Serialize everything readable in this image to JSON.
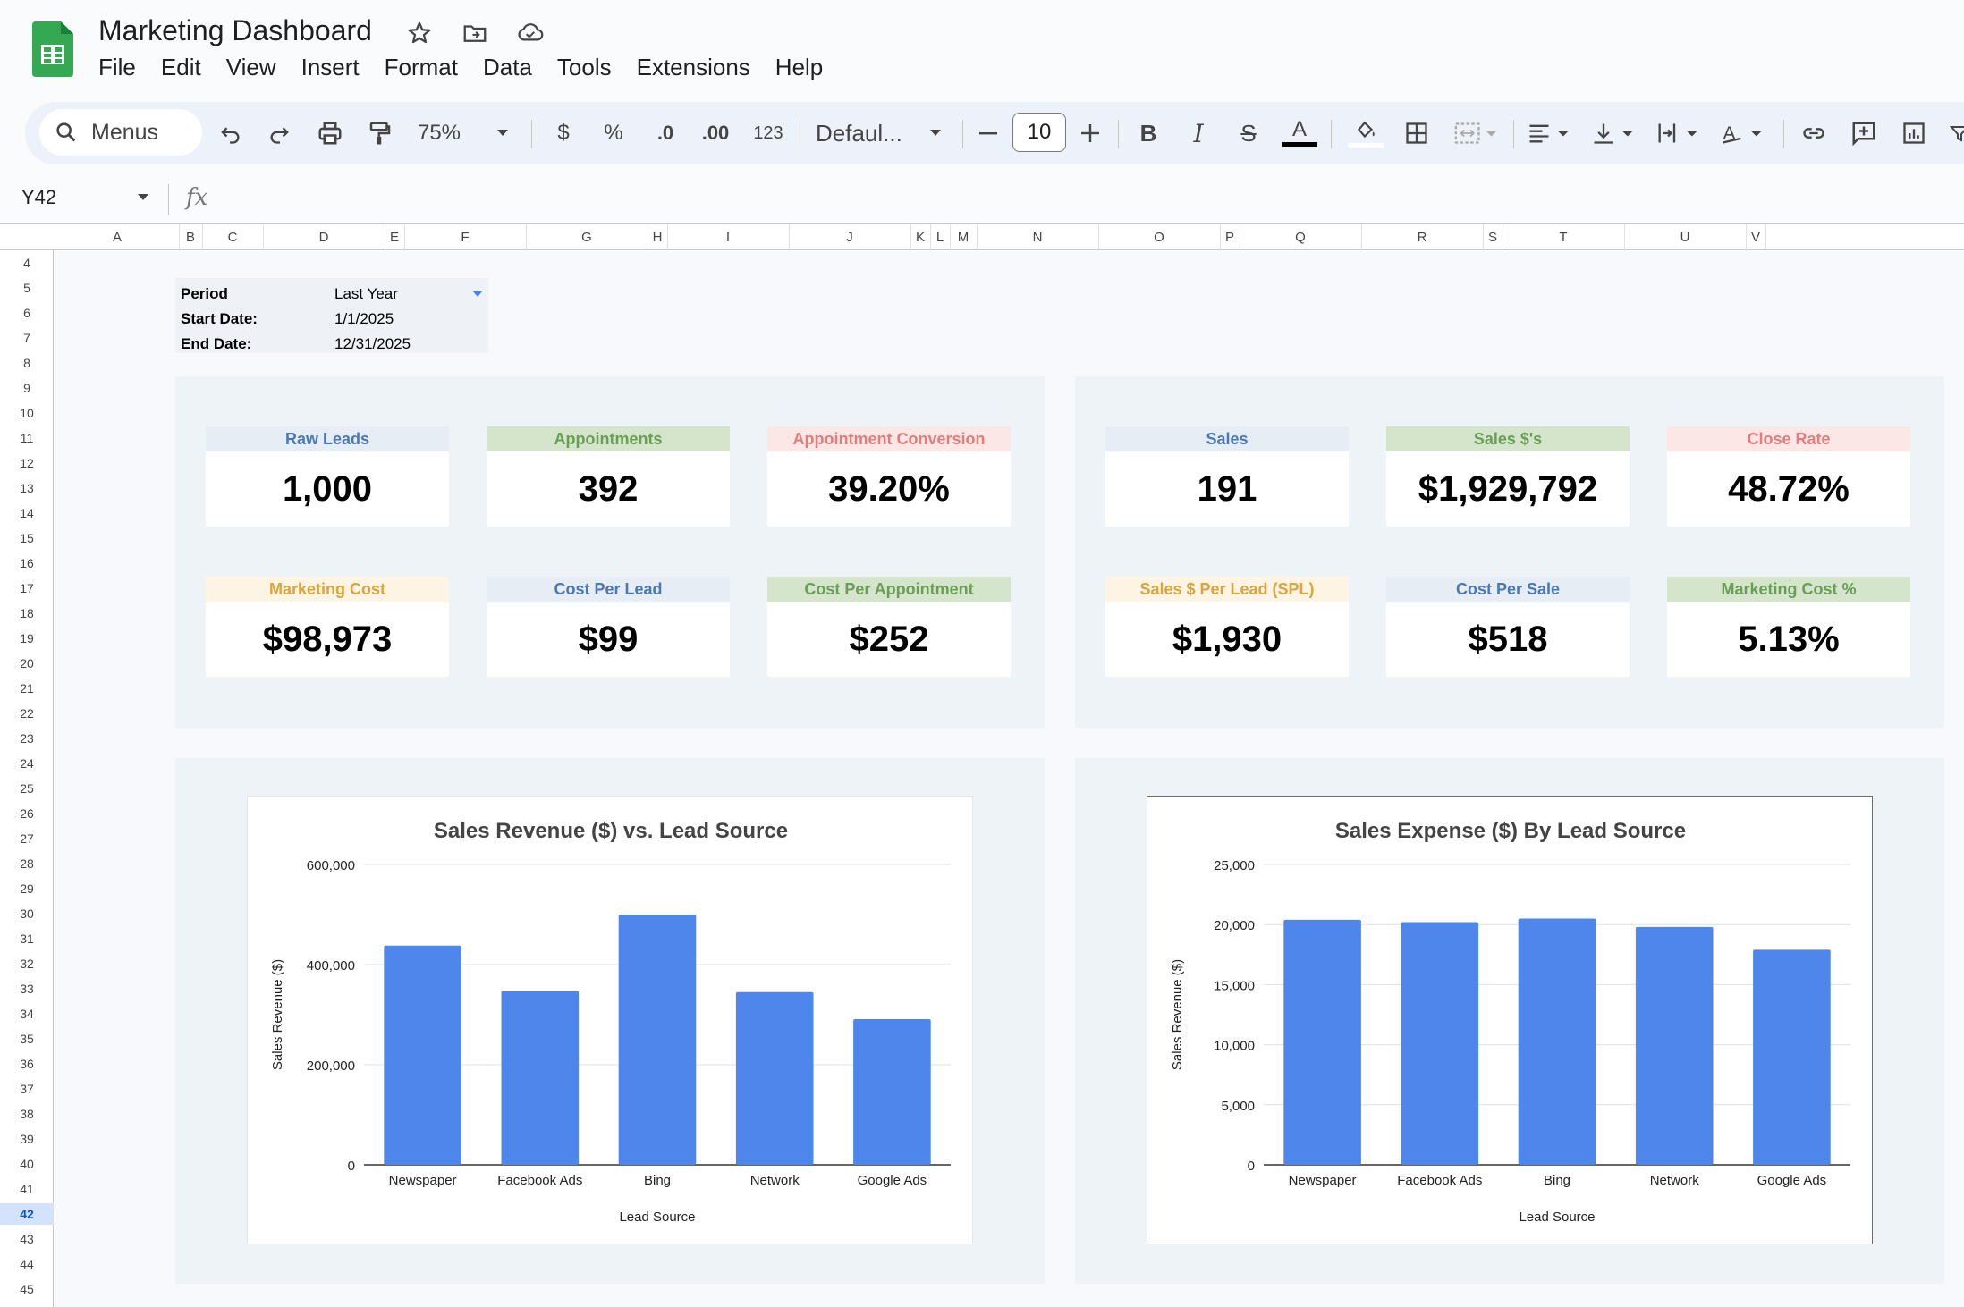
{
  "app": {
    "doc_title": "Marketing Dashboard",
    "menu": [
      "File",
      "Edit",
      "View",
      "Insert",
      "Format",
      "Data",
      "Tools",
      "Extensions",
      "Help"
    ]
  },
  "toolbar": {
    "search_label": "Menus",
    "zoom": "75%",
    "currency": "$",
    "percent": "%",
    "dec_decrease": ".0",
    "dec_increase": ".00",
    "number_format": "123",
    "font": "Defaul...",
    "font_size": "10"
  },
  "formula_bar": {
    "cell_ref": "Y42",
    "fx": "fx"
  },
  "grid": {
    "columns": [
      "A",
      "B",
      "C",
      "D",
      "E",
      "F",
      "G",
      "H",
      "I",
      "J",
      "K",
      "L",
      "M",
      "N",
      "O",
      "P",
      "Q",
      "R",
      "S",
      "T",
      "U",
      "V"
    ],
    "rows": [
      "4",
      "5",
      "6",
      "7",
      "8",
      "9",
      "10",
      "11",
      "12",
      "13",
      "14",
      "15",
      "16",
      "17",
      "18",
      "19",
      "20",
      "21",
      "22",
      "23",
      "24",
      "25",
      "26",
      "27",
      "28",
      "29",
      "30",
      "31",
      "32",
      "33",
      "34",
      "35",
      "36",
      "37",
      "38",
      "39",
      "40",
      "41",
      "42",
      "43",
      "44",
      "45"
    ],
    "selected_row": "42"
  },
  "period": {
    "period_label": "Period",
    "period_value": "Last Year",
    "start_label": "Start Date:",
    "start_value": "1/1/2025",
    "end_label": "End Date:",
    "end_value": "12/31/2025"
  },
  "kpis": {
    "raw_leads": {
      "label": "Raw Leads",
      "value": "1,000"
    },
    "appointments": {
      "label": "Appointments",
      "value": "392"
    },
    "appointment_conversion": {
      "label": "Appointment Conversion",
      "value": "39.20%"
    },
    "marketing_cost": {
      "label": "Marketing Cost",
      "value": "$98,973"
    },
    "cost_per_lead": {
      "label": "Cost Per Lead",
      "value": "$99"
    },
    "cost_per_appointment": {
      "label": "Cost Per Appointment",
      "value": "$252"
    },
    "sales": {
      "label": "Sales",
      "value": "191"
    },
    "sales_dollars": {
      "label": "Sales $'s",
      "value": "$1,929,792"
    },
    "close_rate": {
      "label": "Close Rate",
      "value": "48.72%"
    },
    "spl": {
      "label": "Sales $ Per Lead (SPL)",
      "value": "$1,930"
    },
    "cost_per_sale": {
      "label": "Cost Per Sale",
      "value": "$518"
    },
    "marketing_cost_pct": {
      "label": "Marketing Cost %",
      "value": "5.13%"
    }
  },
  "colors": {
    "bar": "#4f86ec",
    "header_blue": "#4a78b6",
    "header_green": "#6a9e56",
    "header_pink": "#e27d7b",
    "header_yellow": "#d9a53d"
  },
  "chart_data": [
    {
      "type": "bar",
      "title": "Sales Revenue ($) vs. Lead Source",
      "xlabel": "Lead Source",
      "ylabel": "Sales Revenue ($)",
      "categories": [
        "Newspaper",
        "Facebook Ads",
        "Bing",
        "Network",
        "Google Ads"
      ],
      "values": [
        438000,
        347000,
        500000,
        345000,
        291000
      ],
      "ylim": [
        0,
        600000
      ],
      "yticks": [
        "0",
        "200,000",
        "400,000",
        "600,000"
      ],
      "grid": true
    },
    {
      "type": "bar",
      "title": "Sales Expense ($) By Lead Source",
      "xlabel": "Lead Source",
      "ylabel": "Sales Revenue ($)",
      "categories": [
        "Newspaper",
        "Facebook Ads",
        "Bing",
        "Network",
        "Google Ads"
      ],
      "values": [
        20400,
        20200,
        20500,
        19800,
        17900
      ],
      "ylim": [
        0,
        25000
      ],
      "yticks": [
        "0",
        "5,000",
        "10,000",
        "15,000",
        "20,000",
        "25,000"
      ],
      "grid": true
    }
  ]
}
